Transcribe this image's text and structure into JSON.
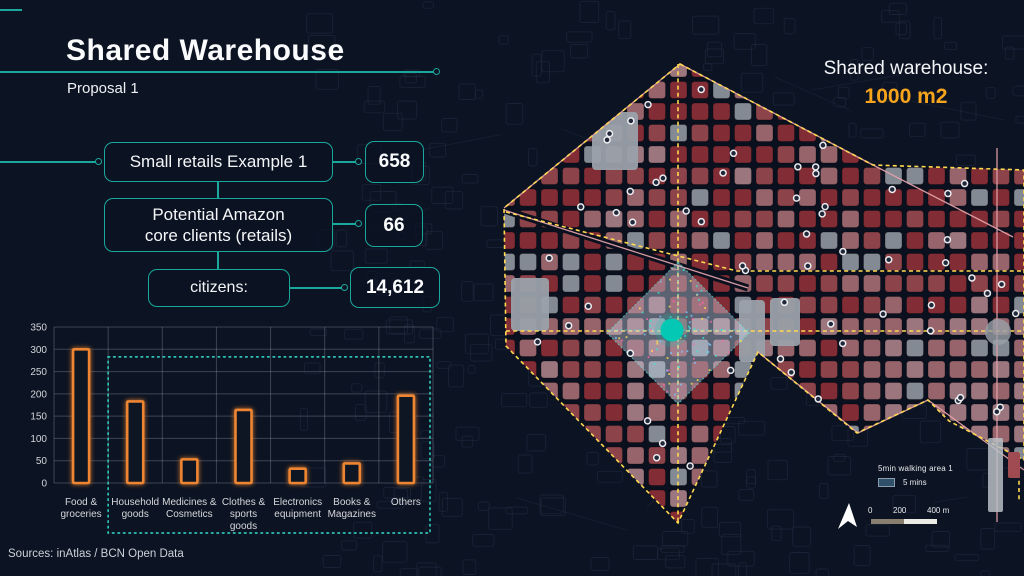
{
  "header": {
    "title": "Shared Warehouse",
    "subtitle": "Proposal 1"
  },
  "stats": [
    {
      "label": "Small retails Example 1",
      "value": "658"
    },
    {
      "label": "Potential Amazon\ncore clients (retails)",
      "value": "66"
    },
    {
      "label": "citizens:",
      "value": "14,612"
    }
  ],
  "chart_data": {
    "type": "bar",
    "title": "",
    "xlabel": "",
    "ylabel": "",
    "categories": [
      "Food &\ngroceries",
      "Household\ngoods",
      "Medicines &\nCosmetics",
      "Clothes &\nsports\ngoods",
      "Electronics\nequipment",
      "Books &\nMagazines",
      "Others"
    ],
    "values": [
      300,
      183,
      53,
      164,
      32,
      44,
      196
    ],
    "ylim": [
      0,
      350
    ],
    "yticks": [
      0,
      50,
      100,
      150,
      200,
      250,
      300,
      350
    ],
    "grid": true,
    "legend_position": "none",
    "bar_color": "#ed8531",
    "highlight": {
      "style": "teal-dotted-rectangle",
      "from_category_index": 1,
      "to_category_index": 6,
      "top_value": 283
    }
  },
  "map": {
    "warehouse_label": "Shared warehouse:",
    "warehouse_size": "1000 m2",
    "legend": {
      "title": "5min walking area 1",
      "item_label": "5 mins",
      "swatch_color": "#2f4f6b"
    },
    "scale": {
      "labels": [
        "0",
        "200",
        "400 m"
      ]
    },
    "colors": {
      "map_bg": "#0a101e",
      "faint_street": "#232c45",
      "block_red_dark": "#8c2f37",
      "block_red": "#97474e",
      "block_rose": "#a26b72",
      "block_pink": "#a87e85",
      "block_gray": "#8d939c",
      "big_gray": "#9aa1aa",
      "boundary_yellow": "#ffd94f",
      "line_pink": "#e2a0a8",
      "walk_area_fill": "#ccd5e7",
      "walk_area_edge": "#53e0d2",
      "warehouse_dot": "#04c7b4",
      "poi_ring": "#f4f6f8",
      "plaza_gray": "#9aa0a8",
      "speckles": [
        "#39e6d2",
        "#ff66b0",
        "#ffe14d",
        "#7ec4ff"
      ]
    }
  },
  "footer": {
    "sources": "Sources: inAtlas / BCN Open Data"
  },
  "theme": {
    "background": "#0c1322",
    "accent": "#1aa79c",
    "orange": "#f7a41d",
    "text": "#f2f5f7"
  }
}
